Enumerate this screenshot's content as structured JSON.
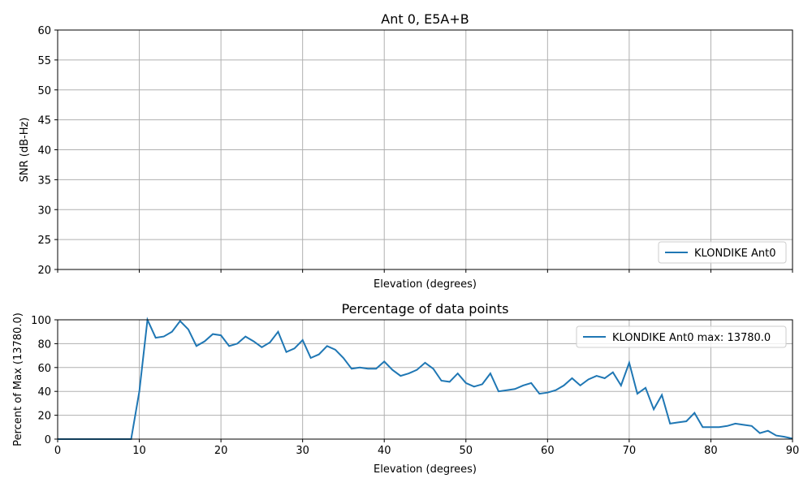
{
  "chart_data": [
    {
      "type": "line",
      "title": "Ant 0, E5A+B",
      "xlabel": "Elevation (degrees)",
      "ylabel": "SNR (dB-Hz)",
      "xlim": [
        0,
        90
      ],
      "ylim": [
        20,
        60
      ],
      "xticks": [
        0,
        10,
        20,
        30,
        40,
        50,
        60,
        70,
        80,
        90
      ],
      "xtick_labels_visible": false,
      "yticks": [
        20,
        25,
        30,
        35,
        40,
        45,
        50,
        55,
        60
      ],
      "grid": true,
      "legend_position": "lower-right",
      "series": [
        {
          "name": "KLONDIKE Ant0",
          "x": [],
          "values": [],
          "color": "#1f77b4"
        }
      ]
    },
    {
      "type": "line",
      "title": "Percentage of data points",
      "xlabel": "Elevation (degrees)",
      "ylabel": "Percent of Max (13780.0)",
      "xlim": [
        0,
        90
      ],
      "ylim": [
        0,
        100
      ],
      "xticks": [
        0,
        10,
        20,
        30,
        40,
        50,
        60,
        70,
        80,
        90
      ],
      "yticks": [
        0,
        20,
        40,
        60,
        80,
        100
      ],
      "grid": true,
      "legend_position": "upper-right",
      "series": [
        {
          "name": "KLONDIKE Ant0 max: 13780.0",
          "color": "#1f77b4",
          "x": [
            0,
            1,
            2,
            3,
            4,
            5,
            6,
            7,
            8,
            9,
            10,
            11,
            12,
            13,
            14,
            15,
            16,
            17,
            18,
            19,
            20,
            21,
            22,
            23,
            24,
            25,
            26,
            27,
            28,
            29,
            30,
            31,
            32,
            33,
            34,
            35,
            36,
            37,
            38,
            39,
            40,
            41,
            42,
            43,
            44,
            45,
            46,
            47,
            48,
            49,
            50,
            51,
            52,
            53,
            54,
            55,
            56,
            57,
            58,
            59,
            60,
            61,
            62,
            63,
            64,
            65,
            66,
            67,
            68,
            69,
            70,
            71,
            72,
            73,
            74,
            75,
            76,
            77,
            78,
            79,
            80,
            81,
            82,
            83,
            84,
            85,
            86,
            87,
            88,
            89,
            90
          ],
          "values": [
            0,
            0,
            0,
            0,
            0,
            0,
            0,
            0,
            0,
            0,
            40,
            100,
            85,
            86,
            90,
            99,
            92,
            78,
            82,
            88,
            87,
            78,
            80,
            86,
            82,
            77,
            81,
            90,
            73,
            76,
            83,
            68,
            71,
            78,
            75,
            68,
            59,
            60,
            59,
            59,
            65,
            58,
            53,
            55,
            58,
            64,
            59,
            49,
            48,
            55,
            47,
            44,
            46,
            55,
            40,
            41,
            42,
            45,
            47,
            38,
            39,
            41,
            45,
            51,
            45,
            50,
            53,
            51,
            56,
            45,
            64,
            38,
            43,
            25,
            37,
            13,
            14,
            15,
            22,
            10,
            10,
            10,
            11,
            13,
            12,
            11,
            5,
            7,
            3,
            2,
            0.5
          ]
        }
      ]
    }
  ]
}
